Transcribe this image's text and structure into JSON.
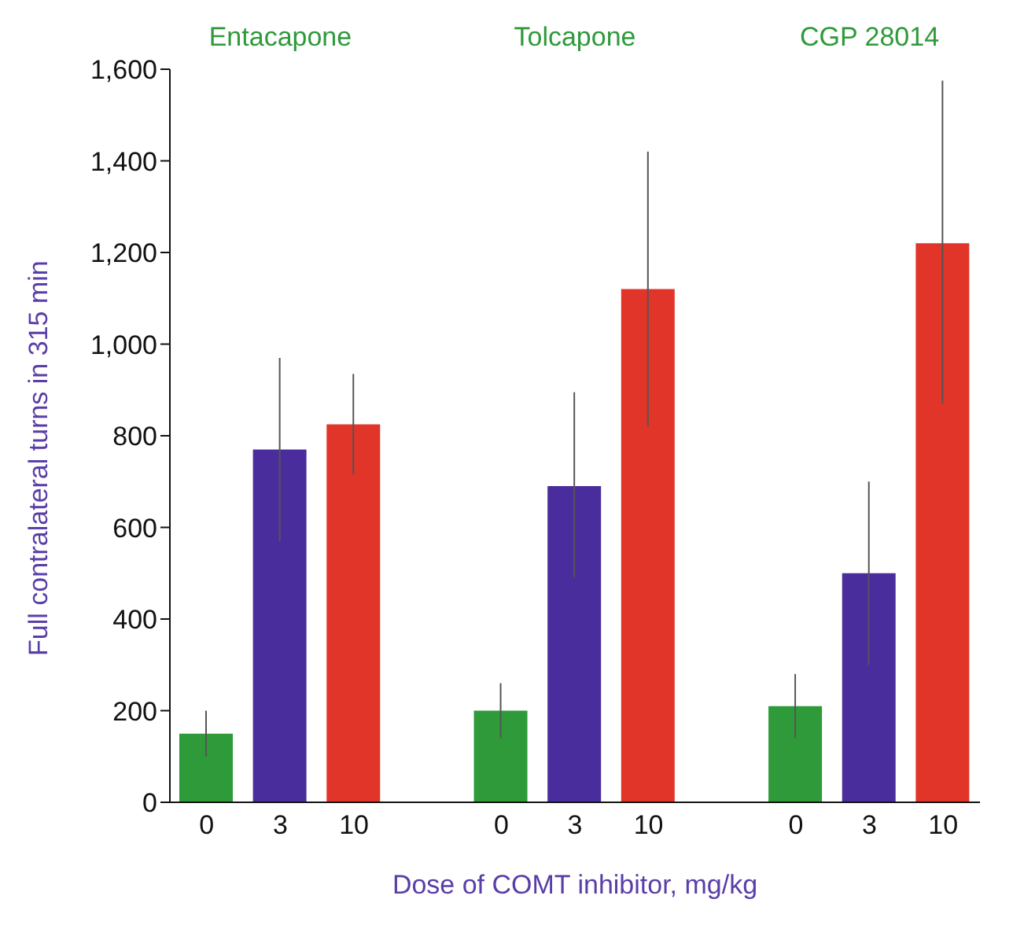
{
  "chart_data": {
    "type": "bar",
    "xlabel": "Dose of COMT inhibitor, mg/kg",
    "ylabel": "Full contralateral turns in 315 min",
    "categories": [
      "0",
      "3",
      "10",
      null,
      "0",
      "3",
      "10",
      null,
      "0",
      "3",
      "10"
    ],
    "values": [
      150,
      770,
      825,
      null,
      200,
      690,
      1120,
      null,
      210,
      500,
      1220
    ],
    "errors": [
      [
        100,
        200
      ],
      [
        570,
        970
      ],
      [
        715,
        935
      ],
      null,
      [
        140,
        260
      ],
      [
        490,
        895
      ],
      [
        820,
        1420
      ],
      null,
      [
        140,
        280
      ],
      [
        300,
        700
      ],
      [
        870,
        1575
      ]
    ],
    "colors": [
      "#2e9a3a",
      "#4a2d9c",
      "#e2352a",
      "#ffffff",
      "#2e9a3a",
      "#4a2d9c",
      "#e2352a",
      "#ffffff",
      "#2e9a3a",
      "#4a2d9c",
      "#e2352a"
    ],
    "annotations": [
      "Entacapone",
      "Tolcapone",
      "CGP 28014"
    ],
    "ylim": [
      0,
      1600
    ],
    "yticks": [
      0,
      200,
      400,
      600,
      800,
      {
        "value": 1000,
        "label": "1,000"
      },
      {
        "value": 1200,
        "label": "1,200"
      },
      {
        "value": 1400,
        "label": "1,400"
      },
      {
        "value": 1600,
        "label": "1,600"
      }
    ],
    "grid": false,
    "legend": false
  }
}
